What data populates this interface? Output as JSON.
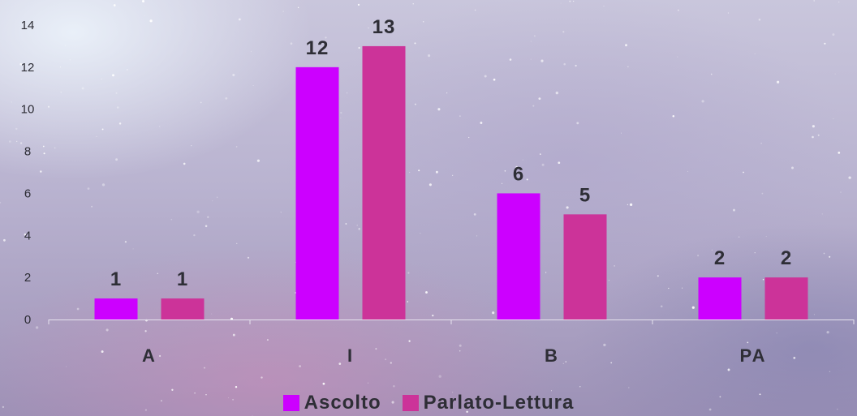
{
  "chart_data": {
    "type": "bar",
    "categories": [
      "A",
      "I",
      "B",
      "PA"
    ],
    "series": [
      {
        "name": "Ascolto",
        "values": [
          1,
          12,
          6,
          2
        ],
        "color": "#cc00ff"
      },
      {
        "name": "Parlato-Lettura",
        "values": [
          1,
          13,
          5,
          2
        ],
        "color": "#cc3399"
      }
    ],
    "y_ticks": [
      "0",
      "2",
      "4",
      "6",
      "8",
      "10",
      "12",
      "14"
    ],
    "ylim": [
      0,
      14
    ],
    "title": "",
    "xlabel": "",
    "ylabel": "",
    "grid": false,
    "data_labels": true,
    "legend_position": "bottom"
  }
}
